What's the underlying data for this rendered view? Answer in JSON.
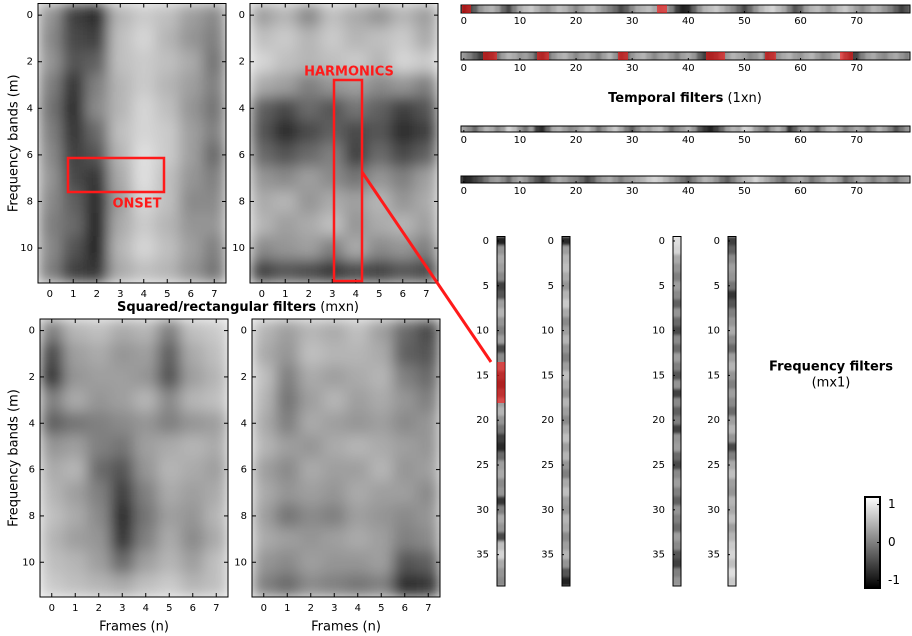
{
  "section_titles": {
    "squared": {
      "title": "Squared/rectangular filters",
      "shape": "(mxn)"
    },
    "temporal": {
      "title": "Temporal filters",
      "shape": "(1xn)"
    },
    "frequency": {
      "title": "Frequency filters",
      "shape": "(mx1)"
    }
  },
  "colormap": "gray",
  "chart_data": [
    {
      "type": "heatmap",
      "ylabel": "Frequency bands (m)",
      "annotation": "ONSET",
      "xlim": [
        -0.5,
        7.5
      ],
      "ylim": [
        11.5,
        -0.5
      ],
      "xticks": [
        0,
        1,
        2,
        3,
        4,
        5,
        6,
        7
      ],
      "yticks": [
        0,
        2,
        4,
        6,
        8,
        10
      ],
      "values": [
        [
          0.2,
          -0.6,
          -0.8,
          0.5,
          0.7,
          0.6,
          0.3,
          0.1
        ],
        [
          0.1,
          -0.5,
          -0.6,
          0.6,
          0.8,
          0.5,
          0.2,
          0.0
        ],
        [
          0.2,
          -0.4,
          -0.3,
          0.6,
          0.7,
          0.6,
          0.4,
          -0.1
        ],
        [
          0.0,
          -0.7,
          0.0,
          0.5,
          0.7,
          0.5,
          0.3,
          0.0
        ],
        [
          -0.1,
          -0.8,
          0.1,
          0.5,
          0.8,
          0.6,
          0.2,
          -0.1
        ],
        [
          0.0,
          -0.7,
          -0.2,
          0.6,
          0.8,
          0.7,
          0.3,
          0.0
        ],
        [
          0.1,
          -0.6,
          -0.4,
          0.5,
          0.9,
          0.7,
          0.3,
          -0.2
        ],
        [
          0.2,
          -0.5,
          -0.7,
          0.4,
          0.9,
          0.6,
          0.2,
          0.0
        ],
        [
          0.1,
          -0.3,
          -0.8,
          0.3,
          0.8,
          0.6,
          0.1,
          0.1
        ],
        [
          0.0,
          -0.2,
          -0.9,
          0.4,
          0.7,
          0.5,
          0.2,
          0.2
        ],
        [
          0.1,
          -0.4,
          -0.9,
          0.5,
          0.8,
          0.6,
          0.3,
          0.0
        ],
        [
          0.0,
          -0.6,
          -0.7,
          0.4,
          0.6,
          0.5,
          0.2,
          -0.1
        ]
      ]
    },
    {
      "type": "heatmap",
      "annotation": "HARMONICS",
      "xlim": [
        -0.5,
        7.5
      ],
      "ylim": [
        11.5,
        -0.5
      ],
      "xticks": [
        0,
        1,
        2,
        3,
        4,
        5,
        6,
        7
      ],
      "yticks": [
        0,
        2,
        4,
        6,
        8,
        10
      ],
      "values": [
        [
          0.3,
          0.5,
          0.1,
          0.6,
          0.4,
          0.2,
          0.5,
          0.3
        ],
        [
          0.6,
          0.7,
          0.5,
          0.7,
          0.5,
          0.6,
          0.7,
          0.4
        ],
        [
          0.8,
          0.6,
          0.5,
          0.6,
          0.7,
          0.5,
          0.8,
          0.7
        ],
        [
          0.4,
          0.3,
          0.0,
          0.2,
          0.3,
          0.1,
          0.2,
          0.0
        ],
        [
          -0.3,
          -0.5,
          -0.2,
          -0.4,
          -0.1,
          -0.3,
          -0.6,
          -0.4
        ],
        [
          -0.4,
          -0.8,
          -0.5,
          -0.3,
          -0.5,
          -0.4,
          -0.8,
          -0.6
        ],
        [
          -0.2,
          -0.4,
          -0.2,
          0.0,
          -0.6,
          -0.2,
          -0.5,
          -0.3
        ],
        [
          0.2,
          0.1,
          0.3,
          0.1,
          -0.1,
          0.2,
          0.0,
          0.3
        ],
        [
          0.4,
          0.5,
          0.2,
          0.4,
          0.3,
          0.5,
          0.2,
          0.4
        ],
        [
          0.5,
          0.3,
          0.4,
          0.6,
          0.2,
          0.4,
          0.5,
          0.3
        ],
        [
          0.1,
          0.2,
          0.3,
          0.0,
          0.4,
          0.1,
          0.2,
          0.0
        ],
        [
          -0.6,
          -0.4,
          -0.5,
          -0.7,
          -0.5,
          -0.6,
          -0.4,
          -0.5
        ]
      ]
    },
    {
      "type": "heatmap",
      "ylabel": "Frequency bands (m)",
      "xlabel": "Frames (n)",
      "xlim": [
        -0.5,
        7.5
      ],
      "ylim": [
        11.5,
        -0.5
      ],
      "xticks": [
        0,
        1,
        2,
        3,
        4,
        5,
        6,
        7
      ],
      "yticks": [
        0,
        2,
        4,
        6,
        8,
        10
      ],
      "values": [
        [
          0.0,
          0.5,
          0.6,
          0.4,
          0.5,
          0.0,
          0.6,
          0.7
        ],
        [
          -0.5,
          0.3,
          0.4,
          0.2,
          0.3,
          -0.3,
          0.4,
          0.6
        ],
        [
          -0.7,
          0.2,
          0.3,
          0.3,
          0.2,
          -0.4,
          0.3,
          0.5
        ],
        [
          0.0,
          0.4,
          0.2,
          0.3,
          0.5,
          0.1,
          0.5,
          0.6
        ],
        [
          -0.3,
          -0.1,
          0.0,
          0.1,
          0.2,
          0.0,
          0.2,
          0.3
        ],
        [
          0.2,
          0.3,
          0.0,
          -0.1,
          0.3,
          0.4,
          0.5,
          0.4
        ],
        [
          0.4,
          0.5,
          -0.2,
          -0.4,
          0.2,
          0.5,
          0.4,
          0.3
        ],
        [
          0.5,
          0.3,
          0.0,
          -0.6,
          0.0,
          0.4,
          0.3,
          0.4
        ],
        [
          0.6,
          0.4,
          0.1,
          -0.8,
          -0.1,
          0.3,
          0.2,
          0.5
        ],
        [
          0.5,
          0.3,
          0.2,
          -0.7,
          0.0,
          0.4,
          0.1,
          0.4
        ],
        [
          0.6,
          0.5,
          0.3,
          -0.2,
          0.3,
          0.5,
          0.3,
          0.6
        ],
        [
          0.7,
          0.6,
          0.5,
          0.4,
          0.6,
          0.7,
          0.5,
          0.6
        ]
      ]
    },
    {
      "type": "heatmap",
      "xlabel": "Frames (n)",
      "xlim": [
        -0.5,
        7.5
      ],
      "ylim": [
        11.5,
        -0.5
      ],
      "xticks": [
        0,
        1,
        2,
        3,
        4,
        5,
        6,
        7
      ],
      "yticks": [
        0,
        2,
        4,
        6,
        8,
        10
      ],
      "values": [
        [
          0.5,
          0.3,
          0.5,
          0.4,
          0.6,
          0.3,
          -0.2,
          -0.5
        ],
        [
          0.4,
          0.2,
          0.6,
          0.5,
          0.5,
          0.4,
          -0.3,
          -0.4
        ],
        [
          0.6,
          0.0,
          0.4,
          0.3,
          0.4,
          0.5,
          0.0,
          -0.2
        ],
        [
          0.5,
          -0.1,
          0.3,
          0.5,
          0.3,
          0.4,
          0.2,
          0.0
        ],
        [
          0.4,
          0.0,
          0.4,
          0.3,
          0.2,
          0.3,
          0.1,
          0.2
        ],
        [
          0.5,
          0.3,
          0.2,
          0.4,
          0.5,
          0.4,
          0.3,
          0.2
        ],
        [
          0.3,
          0.1,
          0.4,
          0.3,
          0.3,
          0.5,
          0.2,
          0.3
        ],
        [
          0.4,
          0.2,
          0.3,
          0.2,
          0.4,
          0.3,
          0.3,
          0.1
        ],
        [
          0.3,
          -0.1,
          0.1,
          0.0,
          0.3,
          0.2,
          0.1,
          0.2
        ],
        [
          0.4,
          0.3,
          0.2,
          0.3,
          0.4,
          0.3,
          0.0,
          0.1
        ],
        [
          0.2,
          0.1,
          0.3,
          0.2,
          0.2,
          0.3,
          -0.4,
          -0.3
        ],
        [
          0.0,
          -0.2,
          0.1,
          0.0,
          -0.1,
          0.0,
          -0.8,
          -0.7
        ]
      ]
    },
    {
      "type": "hstrip",
      "xlim": [
        -0.5,
        79.5
      ],
      "xticks": [
        0,
        10,
        20,
        30,
        40,
        50,
        60,
        70
      ],
      "values": [
        -0.9,
        -0.6,
        -0.3,
        0.2,
        0.4,
        0.5,
        0.3,
        -0.2,
        -0.5,
        0.0,
        0.4,
        0.6,
        0.7,
        0.5,
        0.3,
        0.2,
        0.4,
        0.6,
        0.5,
        0.3,
        0.1,
        0.3,
        0.5,
        0.6,
        0.4,
        0.2,
        0.0,
        -0.2,
        -0.5,
        -0.3,
        0.1,
        0.4,
        0.5,
        0.6,
        0.4,
        0.2,
        0.3,
        0.0,
        -0.6,
        -0.9,
        -0.8,
        -0.3,
        0.2,
        0.5,
        0.6,
        0.7,
        0.5,
        0.3,
        0.1,
        -0.2,
        -0.5,
        -0.2,
        0.2,
        0.5,
        0.7,
        0.8,
        0.6,
        0.4,
        0.0,
        -0.4,
        -0.2,
        0.3,
        0.5,
        0.6,
        0.4,
        0.2,
        0.4,
        0.6,
        0.7,
        0.5,
        0.3,
        0.1,
        0.3,
        0.5,
        0.4,
        0.2,
        0.0,
        -0.3,
        -0.6,
        -0.4
      ]
    },
    {
      "type": "hstrip",
      "xlim": [
        -0.5,
        79.5
      ],
      "xticks": [
        0,
        10,
        20,
        30,
        40,
        50,
        60,
        70
      ],
      "values": [
        0.2,
        0.0,
        -0.3,
        -0.6,
        -0.7,
        -0.5,
        -0.1,
        0.3,
        0.5,
        0.4,
        0.2,
        0.3,
        0.1,
        -0.4,
        -0.6,
        -0.2,
        0.2,
        0.4,
        0.5,
        0.3,
        0.1,
        0.3,
        0.4,
        0.2,
        0.0,
        0.3,
        0.5,
        0.2,
        -0.5,
        -0.3,
        0.2,
        0.4,
        0.5,
        0.3,
        0.1,
        0.3,
        0.4,
        0.2,
        0.0,
        0.3,
        0.4,
        0.2,
        -0.3,
        -0.6,
        -0.7,
        -0.5,
        -0.1,
        0.3,
        0.5,
        0.4,
        0.3,
        0.1,
        0.2,
        0.4,
        -0.5,
        -0.3,
        0.2,
        0.4,
        0.5,
        0.3,
        0.2,
        0.4,
        0.5,
        0.3,
        0.1,
        0.2,
        0.4,
        0.5,
        -0.2,
        -0.6,
        -0.5,
        0.0,
        0.3,
        0.4,
        0.2,
        0.1,
        0.3,
        0.4,
        0.2,
        0.0
      ]
    },
    {
      "type": "hstrip",
      "xlim": [
        -0.5,
        79.5
      ],
      "xticks": [
        0,
        10,
        20,
        30,
        40,
        50,
        60,
        70
      ],
      "values": [
        0.3,
        0.1,
        -0.2,
        0.2,
        0.5,
        0.4,
        0.1,
        0.3,
        0.8,
        0.6,
        0.2,
        -0.1,
        0.3,
        -0.6,
        -0.8,
        -0.2,
        0.4,
        0.5,
        0.3,
        0.1,
        0.2,
        0.4,
        0.6,
        0.3,
        -0.1,
        0.2,
        0.5,
        0.7,
        0.4,
        0.0,
        -0.3,
        0.1,
        0.4,
        0.3,
        0.5,
        0.6,
        0.2,
        -0.2,
        0.1,
        0.3,
        0.5,
        0.2,
        -0.4,
        -0.7,
        -0.9,
        -0.6,
        -0.2,
        0.3,
        0.5,
        0.4,
        0.8,
        0.7,
        0.3,
        0.1,
        -0.2,
        0.3,
        0.5,
        0.2,
        -0.7,
        -0.3,
        0.2,
        0.4,
        0.1,
        -0.3,
        0.2,
        0.5,
        0.6,
        0.3,
        0.0,
        0.2,
        0.4,
        0.3,
        -0.1,
        0.2,
        0.5,
        0.3,
        0.0,
        -0.4,
        -0.1,
        0.2
      ]
    },
    {
      "type": "hstrip",
      "xlim": [
        -0.5,
        79.5
      ],
      "xticks": [
        0,
        10,
        20,
        30,
        40,
        50,
        60,
        70
      ],
      "values": [
        -0.9,
        -0.8,
        -0.6,
        -0.4,
        -0.1,
        0.2,
        0.3,
        0.1,
        -0.2,
        0.2,
        0.4,
        0.2,
        -0.1,
        -0.4,
        -0.6,
        -0.3,
        0.2,
        0.4,
        0.3,
        0.1,
        0.0,
        -0.2,
        -0.5,
        -0.3,
        0.1,
        0.3,
        0.4,
        0.2,
        0.0,
        0.2,
        0.3,
        0.4,
        0.5,
        0.7,
        0.8,
        0.7,
        0.5,
        0.3,
        0.1,
        -0.1,
        -0.3,
        0.0,
        0.3,
        0.5,
        0.4,
        0.2,
        -0.1,
        -0.3,
        0.0,
        0.3,
        0.5,
        0.6,
        0.8,
        0.6,
        0.4,
        0.2,
        0.0,
        -0.2,
        0.1,
        0.3,
        0.4,
        0.2,
        -0.1,
        0.1,
        0.3,
        0.5,
        0.4,
        0.2,
        -0.2,
        0.0,
        0.3,
        0.4,
        0.2,
        0.0,
        0.2,
        0.3,
        0.1,
        -0.1,
        0.2,
        0.3
      ]
    },
    {
      "type": "vstrip",
      "ylim": [
        38.5,
        -0.5
      ],
      "yticks": [
        0,
        5,
        10,
        15,
        20,
        25,
        30,
        35
      ],
      "values": [
        -0.9,
        0.2,
        0.4,
        0.3,
        0.1,
        -0.6,
        -0.4,
        0.3,
        0.5,
        0.2,
        0.0,
        0.3,
        -0.5,
        0.1,
        0.2,
        -0.4,
        -0.7,
        -0.3,
        0.3,
        0.5,
        0.2,
        -0.1,
        -0.6,
        -0.8,
        -0.2,
        0.3,
        0.4,
        0.1,
        0.2,
        -0.7,
        0.0,
        0.4,
        0.2,
        -0.5,
        0.6,
        0.8,
        0.4,
        0.2,
        0.1
      ]
    },
    {
      "type": "vstrip",
      "ylim": [
        38.5,
        -0.5
      ],
      "yticks": [
        0,
        5,
        10,
        15,
        20,
        25,
        30,
        35
      ],
      "values": [
        -0.8,
        0.3,
        0.5,
        0.6,
        0.4,
        0.2,
        0.5,
        0.7,
        0.4,
        0.1,
        0.3,
        0.5,
        0.2,
        0.0,
        0.3,
        0.6,
        0.4,
        0.2,
        0.5,
        0.3,
        0.1,
        0.4,
        0.6,
        0.3,
        0.5,
        0.2,
        0.0,
        0.4,
        0.6,
        0.3,
        0.2,
        0.5,
        0.4,
        0.1,
        0.3,
        0.5,
        0.2,
        -0.4,
        -0.9
      ]
    },
    {
      "type": "vstrip",
      "ylim": [
        38.5,
        -0.5
      ],
      "yticks": [
        0,
        5,
        10,
        15,
        20,
        25,
        30,
        35
      ],
      "values": [
        0.9,
        0.8,
        0.4,
        0.2,
        0.0,
        0.3,
        0.1,
        -0.3,
        0.2,
        -0.2,
        -0.5,
        0.1,
        -0.2,
        0.3,
        0.0,
        -0.4,
        0.2,
        -0.6,
        0.1,
        -0.3,
        0.0,
        -0.6,
        0.2,
        0.3,
        -0.2,
        -0.5,
        0.1,
        0.3,
        0.0,
        -0.3,
        0.2,
        0.0,
        -0.2,
        0.3,
        0.1,
        -0.4,
        -0.6,
        0.0,
        0.2
      ]
    },
    {
      "type": "vstrip",
      "ylim": [
        38.5,
        -0.5
      ],
      "yticks": [
        0,
        5,
        10,
        15,
        20,
        25,
        30,
        35
      ],
      "values": [
        -0.6,
        -0.3,
        0.1,
        0.3,
        0.2,
        -0.1,
        -0.7,
        -0.4,
        0.0,
        0.2,
        0.4,
        0.1,
        -0.2,
        0.3,
        0.5,
        0.2,
        0.0,
        0.3,
        0.1,
        -0.2,
        0.3,
        0.5,
        0.2,
        -0.5,
        0.0,
        0.4,
        0.6,
        0.3,
        0.2,
        0.5,
        0.4,
        0.6,
        0.3,
        0.5,
        0.7,
        0.8,
        0.6,
        0.9,
        0.7
      ]
    },
    {
      "type": "colorbar",
      "ylim": [
        -1.2,
        1.2
      ],
      "yticks": [
        1,
        0,
        -1
      ]
    }
  ]
}
